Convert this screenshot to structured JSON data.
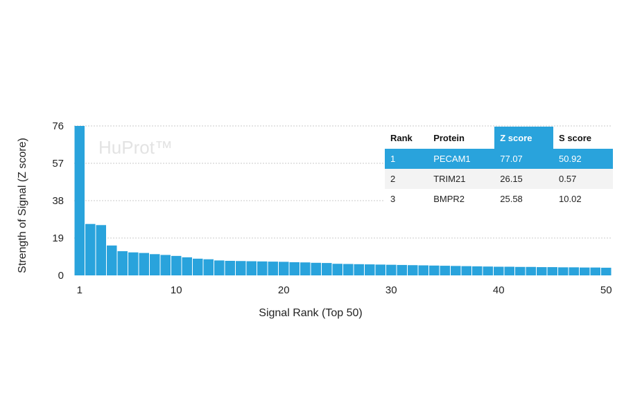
{
  "chart_data": {
    "type": "bar",
    "watermark": "HuProt™",
    "xlabel": "Signal Rank (Top 50)",
    "ylabel": "Strength of Signal (Z score)",
    "ylim": [
      0,
      76
    ],
    "yticks": [
      0,
      19,
      38,
      57,
      76
    ],
    "xticks": [
      1,
      10,
      20,
      30,
      40,
      50
    ],
    "grid": true,
    "bar_color": "#29a3dc",
    "x": [
      1,
      2,
      3,
      4,
      5,
      6,
      7,
      8,
      9,
      10,
      11,
      12,
      13,
      14,
      15,
      16,
      17,
      18,
      19,
      20,
      21,
      22,
      23,
      24,
      25,
      26,
      27,
      28,
      29,
      30,
      31,
      32,
      33,
      34,
      35,
      36,
      37,
      38,
      39,
      40,
      41,
      42,
      43,
      44,
      45,
      46,
      47,
      48,
      49,
      50
    ],
    "values": [
      77.07,
      26.15,
      25.58,
      15.2,
      12.3,
      11.7,
      11.4,
      10.8,
      10.4,
      9.9,
      9.2,
      8.5,
      8.2,
      7.6,
      7.4,
      7.3,
      7.2,
      7.1,
      7.0,
      6.9,
      6.7,
      6.6,
      6.4,
      6.3,
      5.9,
      5.8,
      5.7,
      5.6,
      5.5,
      5.4,
      5.3,
      5.2,
      5.1,
      5.0,
      4.9,
      4.8,
      4.7,
      4.6,
      4.5,
      4.4,
      4.4,
      4.3,
      4.3,
      4.2,
      4.2,
      4.1,
      4.1,
      4.0,
      4.0,
      3.9
    ]
  },
  "score_table": {
    "headers": [
      "Rank",
      "Protein",
      "Z score",
      "S score"
    ],
    "rows": [
      [
        "1",
        "PECAM1",
        "77.07",
        "50.92"
      ],
      [
        "2",
        "TRIM21",
        "26.15",
        "0.57"
      ],
      [
        "3",
        "BMPR2",
        "25.58",
        "10.02"
      ]
    ]
  }
}
